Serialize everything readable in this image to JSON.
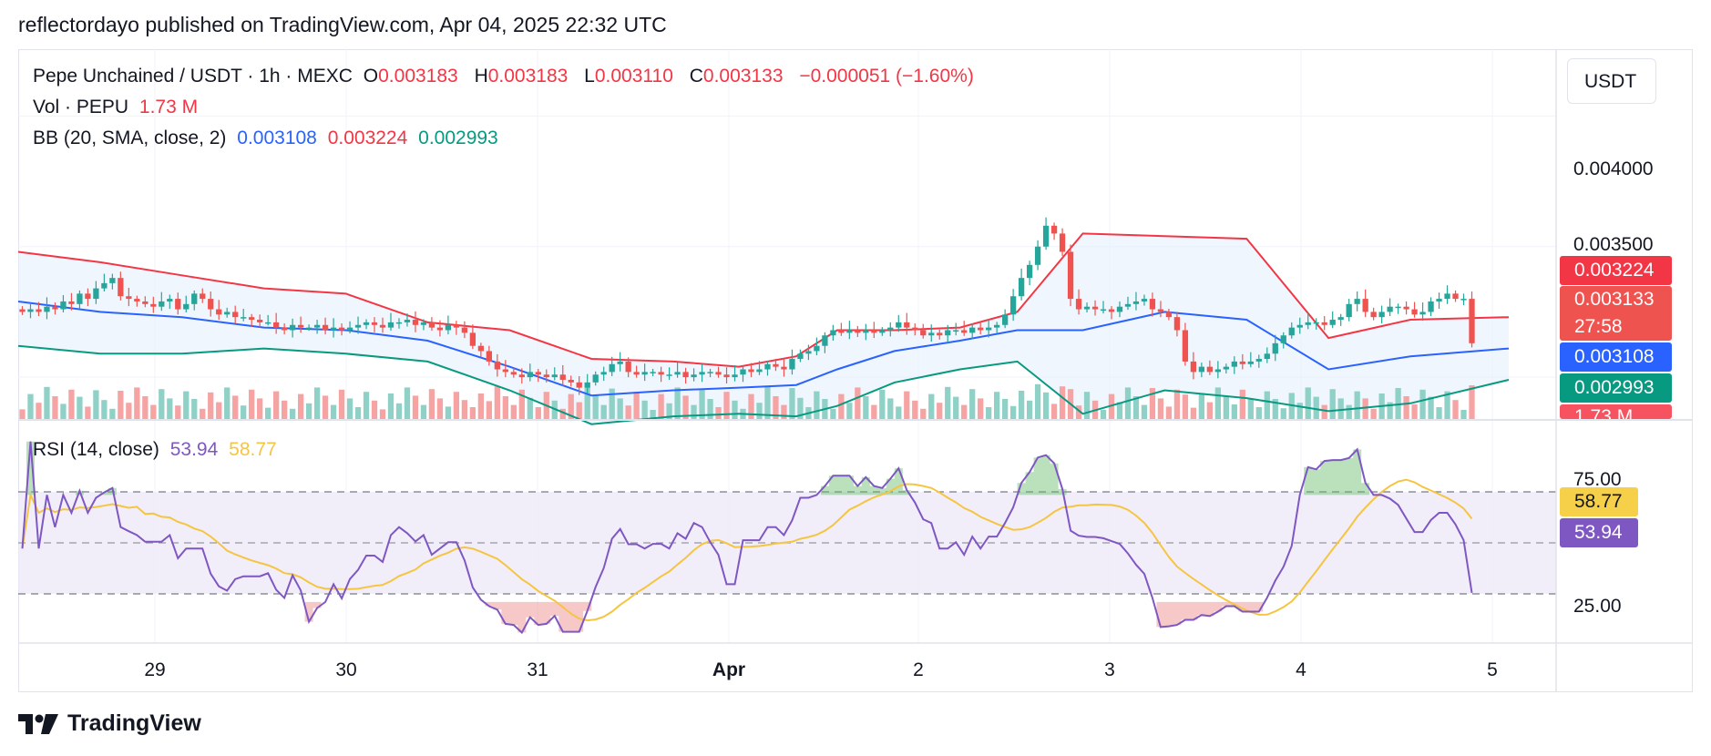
{
  "publisher_line": "reflectordayo published on TradingView.com, Apr 04, 2025 22:32 UTC",
  "quote_unit": "USDT",
  "brand": "TradingView",
  "legend": {
    "symbol": "Pepe Unchained / USDT · 1h · MEXC",
    "o_label": "O",
    "o_value": "0.003183",
    "h_label": "H",
    "h_value": "0.003183",
    "l_label": "L",
    "l_value": "0.003110",
    "c_label": "C",
    "c_value": "0.003133",
    "change": "−0.000051 (−1.60%)",
    "vol_label": "Vol · PEPU",
    "vol_value": "1.73 M",
    "bb_label": "BB (20, SMA, close, 2)",
    "bb_basis": "0.003108",
    "bb_upper": "0.003224",
    "bb_lower": "0.002993",
    "rsi_label": "RSI (14, close)",
    "rsi_value": "53.94",
    "rsi_ma": "58.77"
  },
  "price_tags": {
    "upper": "0.003224",
    "last": "0.003133",
    "countdown": "27:58",
    "basis": "0.003108",
    "lower": "0.002993",
    "volume": "1.73 M"
  },
  "rsi_tags": {
    "ma": "58.77",
    "rsi": "53.94"
  },
  "colors": {
    "up": "#26a69a",
    "down": "#ef5350",
    "bb_upper": "#f23645",
    "bb_basis": "#2962ff",
    "bb_lower": "#089981",
    "rsi": "#7e57c2",
    "rsi_ma": "#f5c542"
  },
  "chart_data": {
    "type": "candlestick",
    "price_axis_ticks": [
      "0.004000",
      "0.003500"
    ],
    "rsi_axis_ticks": [
      "75.00",
      "25.00"
    ],
    "x_ticks": [
      "29",
      "30",
      "31",
      "Apr",
      "2",
      "3",
      "4",
      "5"
    ],
    "ylim_price": [
      0.00284,
      0.0042
    ],
    "ylim_rsi": [
      15,
      95
    ],
    "rsi_levels": [
      70,
      50,
      30
    ],
    "series": [
      {
        "name": "BB upper",
        "x": [
          0,
          10,
          20,
          30,
          40,
          50,
          60,
          70,
          80,
          88,
          95,
          100,
          107,
          115,
          122,
          130,
          140,
          150,
          160,
          170,
          182
        ],
        "y": [
          0.00348,
          0.00344,
          0.00339,
          0.00334,
          0.00332,
          0.00321,
          0.00318,
          0.00307,
          0.00306,
          0.00304,
          0.00308,
          0.00318,
          0.00318,
          0.00319,
          0.00325,
          0.00355,
          0.00354,
          0.00353,
          0.00315,
          0.00322,
          0.00323
        ]
      },
      {
        "name": "BB basis",
        "x": [
          0,
          10,
          20,
          30,
          40,
          50,
          60,
          70,
          80,
          88,
          95,
          100,
          107,
          115,
          122,
          130,
          140,
          150,
          160,
          170,
          182
        ],
        "y": [
          0.00329,
          0.00325,
          0.00323,
          0.00319,
          0.00318,
          0.00314,
          0.00304,
          0.00293,
          0.00295,
          0.00296,
          0.00297,
          0.00303,
          0.0031,
          0.00314,
          0.00318,
          0.00318,
          0.00325,
          0.00322,
          0.00303,
          0.00308,
          0.00311
        ]
      },
      {
        "name": "BB lower",
        "x": [
          0,
          10,
          20,
          30,
          40,
          50,
          60,
          70,
          80,
          88,
          95,
          100,
          107,
          115,
          122,
          130,
          140,
          150,
          160,
          170,
          182
        ],
        "y": [
          0.00312,
          0.00309,
          0.00309,
          0.00311,
          0.00309,
          0.00306,
          0.00295,
          0.00282,
          0.00285,
          0.00286,
          0.00285,
          0.00289,
          0.00298,
          0.00303,
          0.00306,
          0.00286,
          0.00295,
          0.00292,
          0.00287,
          0.0029,
          0.00299
        ]
      }
    ],
    "candles_close": [
      0.00325,
      0.00326,
      0.00325,
      0.00327,
      0.00326,
      0.00329,
      0.00328,
      0.00332,
      0.0033,
      0.00334,
      0.00336,
      0.00338,
      0.00331,
      0.0033,
      0.00329,
      0.00328,
      0.00327,
      0.00329,
      0.0033,
      0.00326,
      0.00328,
      0.00332,
      0.0033,
      0.00326,
      0.00324,
      0.00325,
      0.00323,
      0.00323,
      0.00322,
      0.00321,
      0.00321,
      0.00319,
      0.00318,
      0.0032,
      0.00319,
      0.00319,
      0.0032,
      0.00318,
      0.00319,
      0.00318,
      0.00319,
      0.0032,
      0.00321,
      0.0032,
      0.00319,
      0.00321,
      0.00321,
      0.00322,
      0.0032,
      0.00321,
      0.00319,
      0.00318,
      0.0032,
      0.00319,
      0.00317,
      0.00312,
      0.0031,
      0.00306,
      0.00303,
      0.00302,
      0.00301,
      0.003,
      0.00302,
      0.00301,
      0.003,
      0.00301,
      0.00299,
      0.00298,
      0.00296,
      0.00298,
      0.00301,
      0.00302,
      0.00305,
      0.00306,
      0.00302,
      0.00301,
      0.00302,
      0.00302,
      0.00301,
      0.00301,
      0.00302,
      0.003,
      0.00301,
      0.00302,
      0.00302,
      0.00301,
      0.003,
      0.00301,
      0.00303,
      0.00302,
      0.00303,
      0.00305,
      0.00304,
      0.00303,
      0.00307,
      0.00309,
      0.0031,
      0.00312,
      0.00316,
      0.00318,
      0.00317,
      0.00318,
      0.00317,
      0.00318,
      0.00317,
      0.00318,
      0.00319,
      0.00321,
      0.00319,
      0.00318,
      0.00316,
      0.00317,
      0.00316,
      0.00318,
      0.00318,
      0.00317,
      0.00319,
      0.00318,
      0.00319,
      0.0032,
      0.00324,
      0.00331,
      0.00338,
      0.00343,
      0.0035,
      0.00358,
      0.00355,
      0.00348,
      0.0033,
      0.00326,
      0.00327,
      0.00326,
      0.00326,
      0.00325,
      0.00327,
      0.00328,
      0.00329,
      0.0033,
      0.00326,
      0.00325,
      0.00323,
      0.00318,
      0.00306,
      0.00302,
      0.00304,
      0.00302,
      0.00303,
      0.00304,
      0.00306,
      0.00305,
      0.00306,
      0.00307,
      0.00309,
      0.00313,
      0.00316,
      0.00319,
      0.0032,
      0.00321,
      0.00321,
      0.0032,
      0.00322,
      0.00323,
      0.00328,
      0.0033,
      0.00325,
      0.00323,
      0.00325,
      0.00327,
      0.00327,
      0.00326,
      0.00324,
      0.00325,
      0.00329,
      0.0033,
      0.00332,
      0.0033,
      0.0033,
      0.00313
    ]
  }
}
